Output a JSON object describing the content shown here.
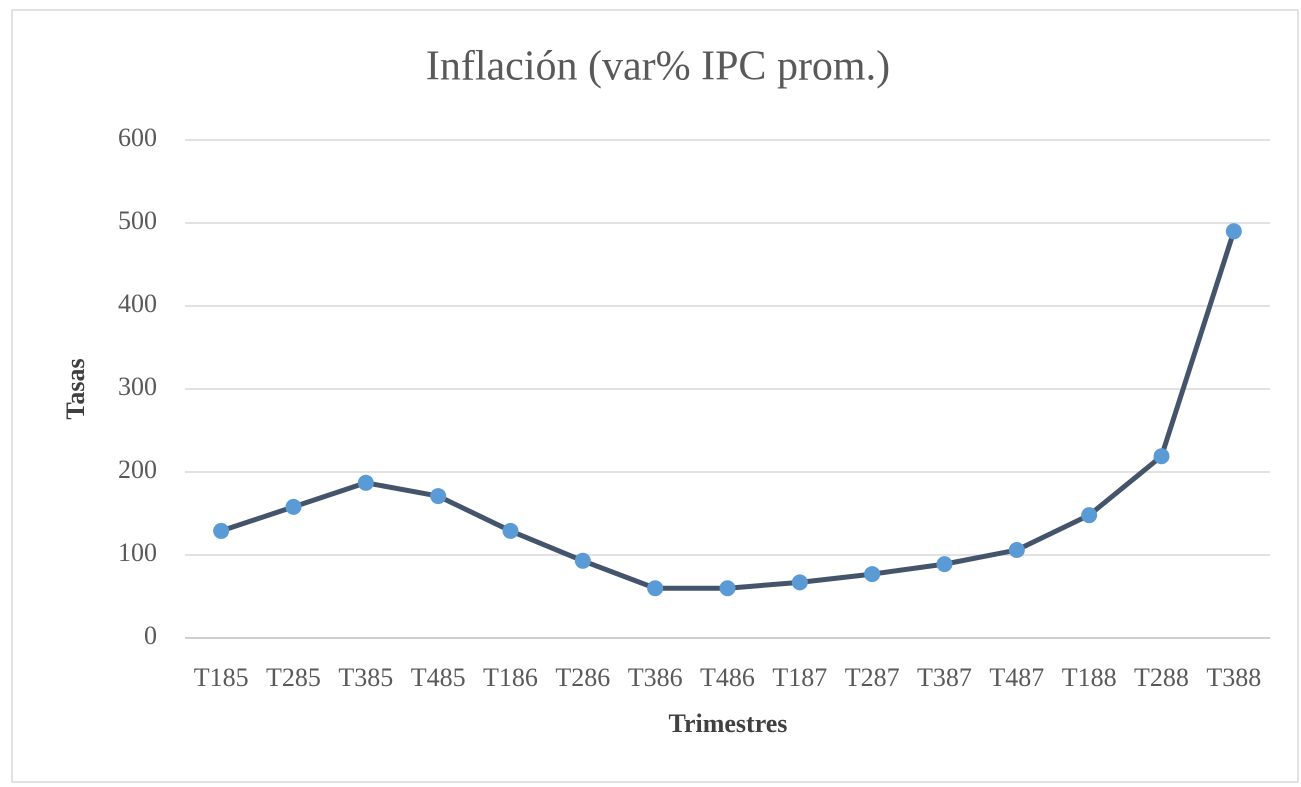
{
  "chart_data": {
    "type": "line",
    "title": "Inflación  (var% IPC prom.)",
    "x_label": "Trimestres",
    "y_label": "Tasas",
    "categories": [
      "T185",
      "T285",
      "T385",
      "T485",
      "T186",
      "T286",
      "T386",
      "T486",
      "T187",
      "T287",
      "T387",
      "T487",
      "T188",
      "T288",
      "T388"
    ],
    "series": [
      {
        "name": "Inflación",
        "line_color": "#44546a",
        "color": "#5b9bd5",
        "values": [
          129,
          158,
          187,
          171,
          129,
          93,
          60,
          60,
          67,
          77,
          89,
          106,
          148,
          219,
          490
        ]
      }
    ],
    "ylim": [
      0,
      600
    ],
    "yticks": [
      0,
      100,
      200,
      300,
      400,
      500,
      600
    ],
    "grid": true
  }
}
